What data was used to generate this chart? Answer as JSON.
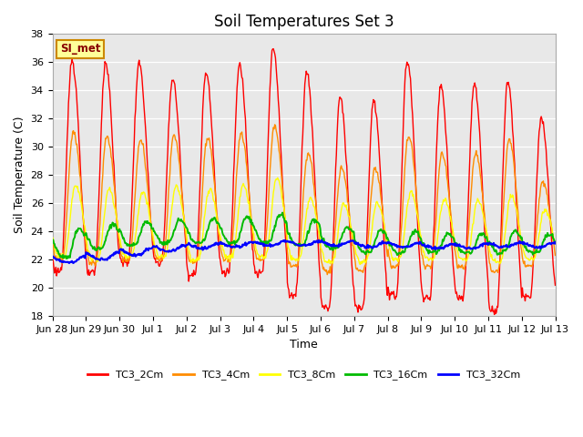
{
  "title": "Soil Temperatures Set 3",
  "xlabel": "Time",
  "ylabel": "Soil Temperature (C)",
  "ylim": [
    18,
    38
  ],
  "yticks": [
    18,
    20,
    22,
    24,
    26,
    28,
    30,
    32,
    34,
    36,
    38
  ],
  "xtick_labels": [
    "Jun 28",
    "Jun 29",
    "Jun 30",
    "Jul 1",
    "Jul 2",
    "Jul 3",
    "Jul 4",
    "Jul 5",
    "Jul 6",
    "Jul 7",
    "Jul 8",
    "Jul 9",
    "Jul 10",
    "Jul 11",
    "Jul 12",
    "Jul 13"
  ],
  "series_names": [
    "TC3_2Cm",
    "TC3_4Cm",
    "TC3_8Cm",
    "TC3_16Cm",
    "TC3_32Cm"
  ],
  "series_colors": [
    "#ff0000",
    "#ff8c00",
    "#ffff00",
    "#00bb00",
    "#0000ff"
  ],
  "background_color": "#e8e8e8",
  "plot_bg": "#e8e8e8",
  "annotation_text": "SI_met",
  "annotation_bg": "#ffff99",
  "annotation_border": "#cc8800",
  "annotation_text_color": "#880000",
  "title_fontsize": 12,
  "axis_label_fontsize": 9,
  "tick_fontsize": 8
}
